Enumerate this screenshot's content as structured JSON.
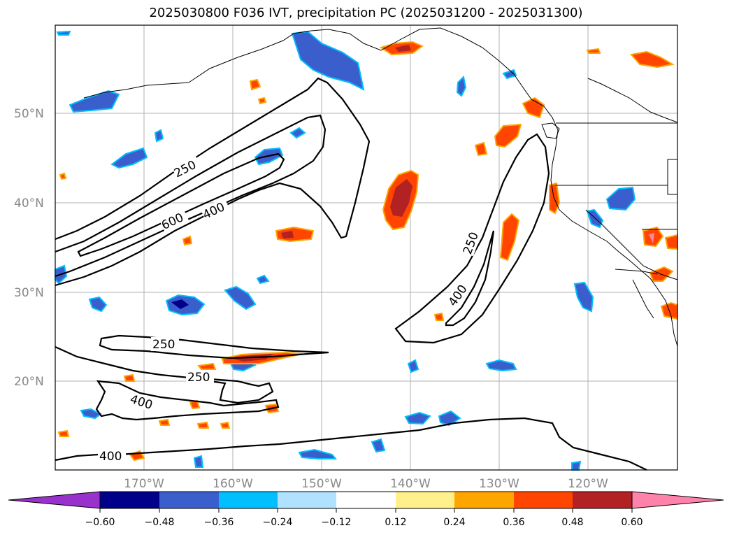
{
  "title": "2025030800 F036 IVT, precipitation PC (2025031200 - 2025031300)",
  "map": {
    "lat_labels": [
      "50°N",
      "40°N",
      "30°N",
      "20°N"
    ],
    "lon_labels": [
      "170°W",
      "160°W",
      "150°W",
      "140°W",
      "130°W",
      "120°W"
    ],
    "contour_labels": [
      "250",
      "600",
      "400",
      "250",
      "400",
      "250",
      "250",
      "400",
      "400"
    ]
  },
  "colorbar": {
    "ticks": [
      "−0.60",
      "−0.48",
      "−0.36",
      "−0.24",
      "−0.12",
      "0.12",
      "0.24",
      "0.36",
      "0.48",
      "0.60"
    ],
    "colors": [
      "#9932cc",
      "#00008b",
      "#3a5fcd",
      "#00bfff",
      "#b0e2ff",
      "#ffffff",
      "#fff08c",
      "#ffa500",
      "#ff4500",
      "#b22222",
      "#ff82ab"
    ]
  }
}
